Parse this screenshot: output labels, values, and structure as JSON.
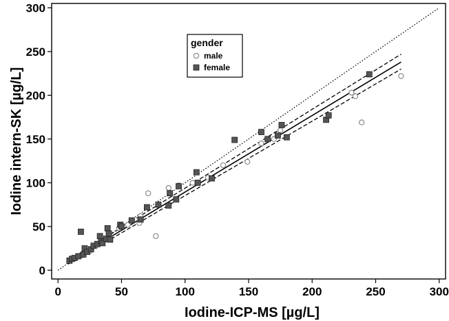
{
  "chart_data": {
    "type": "scatter",
    "xlabel": "Iodine-ICP-MS [µg/L]",
    "ylabel": "Iodine intern-SK [µg/L]",
    "xlim": [
      -5,
      305
    ],
    "ylim": [
      -10,
      305
    ],
    "xticks": [
      0,
      50,
      100,
      150,
      200,
      250,
      300
    ],
    "yticks": [
      0,
      50,
      100,
      150,
      200,
      250,
      300
    ],
    "grid": false,
    "legend": {
      "title": "gender",
      "placement": "top-center",
      "entries": [
        {
          "label": "male",
          "marker": "open-circle",
          "color": "#888888"
        },
        {
          "label": "female",
          "marker": "filled-square",
          "color": "#555555"
        }
      ]
    },
    "series": [
      {
        "name": "male",
        "points": [
          [
            10,
            12
          ],
          [
            14,
            14
          ],
          [
            19,
            17
          ],
          [
            25,
            22
          ],
          [
            30,
            28
          ],
          [
            36,
            34
          ],
          [
            41,
            38
          ],
          [
            48,
            48
          ],
          [
            55,
            52
          ],
          [
            64,
            54
          ],
          [
            65,
            62
          ],
          [
            71,
            88
          ],
          [
            77,
            39
          ],
          [
            87,
            94
          ],
          [
            95,
            97
          ],
          [
            106,
            100
          ],
          [
            118,
            106
          ],
          [
            130,
            120
          ],
          [
            149,
            124
          ],
          [
            160,
            145
          ],
          [
            170,
            150
          ],
          [
            175,
            160
          ],
          [
            231,
            203
          ],
          [
            234,
            199
          ],
          [
            239,
            169
          ],
          [
            270,
            222
          ]
        ]
      },
      {
        "name": "female",
        "points": [
          [
            9,
            11
          ],
          [
            11,
            13
          ],
          [
            13,
            14
          ],
          [
            16,
            16
          ],
          [
            18,
            44
          ],
          [
            20,
            18
          ],
          [
            21,
            25
          ],
          [
            23,
            21
          ],
          [
            26,
            24
          ],
          [
            28,
            28
          ],
          [
            31,
            30
          ],
          [
            33,
            39
          ],
          [
            34,
            33
          ],
          [
            35,
            31
          ],
          [
            38,
            36
          ],
          [
            39,
            48
          ],
          [
            40,
            42
          ],
          [
            41,
            35
          ],
          [
            49,
            52
          ],
          [
            50,
            50
          ],
          [
            58,
            57
          ],
          [
            65,
            58
          ],
          [
            70,
            72
          ],
          [
            79,
            75
          ],
          [
            87,
            74
          ],
          [
            88,
            88
          ],
          [
            93,
            81
          ],
          [
            95,
            96
          ],
          [
            109,
            112
          ],
          [
            110,
            100
          ],
          [
            121,
            105
          ],
          [
            139,
            149
          ],
          [
            160,
            158
          ],
          [
            165,
            150
          ],
          [
            173,
            154
          ],
          [
            176,
            166
          ],
          [
            180,
            152
          ],
          [
            211,
            172
          ],
          [
            213,
            177
          ],
          [
            245,
            224
          ]
        ]
      }
    ],
    "lines": [
      {
        "kind": "identity",
        "style": "dotted",
        "x": [
          0,
          300
        ],
        "y": [
          0,
          300
        ]
      },
      {
        "kind": "regression",
        "style": "solid",
        "x": [
          8,
          270
        ],
        "y": [
          9,
          238
        ]
      },
      {
        "kind": "upper-confidence",
        "style": "dashed",
        "x": [
          8,
          270
        ],
        "y": [
          11,
          247
        ]
      },
      {
        "kind": "lower-confidence",
        "style": "dashed",
        "x": [
          8,
          270
        ],
        "y": [
          7,
          230
        ]
      }
    ]
  }
}
